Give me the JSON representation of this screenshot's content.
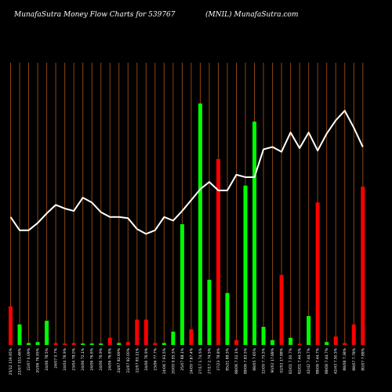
{
  "header": {
    "left": "MunafaSutra  Money Flow  Charts for 539767",
    "right": "(MNIL) MunafaSutra.com"
  },
  "colors": {
    "background": "#000000",
    "grid": "#8B4513",
    "up": "#00ff00",
    "down": "#ff0000",
    "line": "#ffffff"
  },
  "chart_data": {
    "type": "bar",
    "title": "",
    "xlabel": "",
    "ylabel": "",
    "grid": true,
    "ylim": [
      0,
      100
    ],
    "categories": [
      "Fri 25 Jul 2025",
      "Thu 24 Jul 2025",
      "Wed 23 Jul 2025",
      "Tue 22 Jul 2025",
      "Mon 21 Jul 2025",
      "Fri 18 Jul 2025",
      "Thu 17 Jul 2025",
      "Wed 16 Jul 2025",
      "Tue 15 Jul 2025",
      "Mon 14 Jul 2025",
      "Fri 11 Jul 2025",
      "Thu 10 Jul 2025",
      "Wed 09 Jul 2025",
      "Tue 08 Jul 2025",
      "Mon 07 Jul 2025",
      "Fri 04 Jul 2025",
      "Thu 03 Jul 2025",
      "Wed 02 Jul 2025",
      "Tue 01 Jul 2025",
      "Mon 30 Jun 2025",
      "Fri 27 Jun 2025",
      "Thu 26 Jun 2025",
      "Wed 25 Jun 2025",
      "Tue 24 Jun 2025",
      "Mon 23 Jun 2025",
      "Fri 20 Jun 2025",
      "Thu 19 Jun 2025",
      "Wed 18 Jun 2025",
      "Tue 17 Jun 2025",
      "Mon 16 Jun 2025",
      "Fri 13 Jun 2025",
      "Thu 12 Jun 2025",
      "Wed 11 Jun 2025",
      "Tue 10 Jun 2025",
      "Mon 09 Jun 2025",
      "Fri 06 Jun 2025",
      "Thu 05 Jun 2025",
      "Wed 04 Jun 2025",
      "Tue 03 Jun 2025",
      "Mon 02 Jun 2025"
    ],
    "tick_labels": [
      "25/12 139.95%",
      "22/07 151.46%",
      "22/07 0.09%",
      "20/06 76.95%",
      "24/06 78.5%",
      "24/07 0.7%",
      "24/04 76.9%",
      "23/04 78.0%",
      "24/06 72.1%",
      "24/06 76.6%",
      "24/06 76.9%",
      "24/06 76.8%",
      "24/07 82.69%",
      "22/07 82.00%",
      "22/07 83.11%",
      "24/06 76.9%",
      "23/06 77.7%",
      "24/06 7.93.5%",
      "20/09 9.95.5%",
      "25/07 68.1%",
      "24/09 7.67.4%",
      "27/17 1.74.5%",
      "27/17 2.74.5%",
      "27/23 78.8%",
      "85/21 88.5%",
      "88/06 7.02.1%",
      "88/06 7.83.5%",
      "88/05 7.65%",
      "12/09 7.75.5%",
      "90/02 17.88%",
      "02/02 17.88%",
      "82/01 7.50.7%",
      "82/01 7.44.5%",
      "42/42 7.44.7%",
      "88/06 7.44.7%",
      "88/08 7.44.7%",
      "42/43 7.50.5%",
      "88/08 7.38%",
      "88/07 7.78%",
      "80/07 7.88%"
    ],
    "series": [
      {
        "values": [
          16,
          8.5,
          0.8,
          1.2,
          10,
          0.8,
          0.6,
          0.8,
          0.6,
          0.6,
          0.6,
          3,
          0.8,
          1.2,
          10.5,
          10.5,
          0.8,
          0.8,
          5.5,
          50,
          6.5,
          100,
          27,
          77,
          21.5,
          2,
          66,
          92.5,
          7.5,
          2,
          29,
          3,
          0.5,
          12,
          59,
          1.2,
          3.5,
          0.8,
          8.5,
          65.5
        ],
        "direction": [
          "down",
          "up",
          "up",
          "up",
          "up",
          "down",
          "down",
          "down",
          "up",
          "up",
          "up",
          "down",
          "up",
          "down",
          "down",
          "down",
          "down",
          "up",
          "up",
          "up",
          "down",
          "up",
          "up",
          "down",
          "up",
          "down",
          "up",
          "up",
          "up",
          "up",
          "down",
          "up",
          "down",
          "up",
          "down",
          "up",
          "down",
          "down",
          "down",
          "down"
        ]
      },
      {
        "type": "line",
        "values": [
          53,
          47.5,
          47.5,
          50.5,
          54.5,
          58,
          56.5,
          55.5,
          61,
          59,
          55,
          53,
          53,
          52.5,
          48,
          46,
          47.5,
          53,
          51.5,
          55.5,
          60,
          64.5,
          67.5,
          64,
          64,
          70.5,
          69.5,
          69.5,
          81,
          82,
          80,
          88,
          81.5,
          88,
          80.5,
          87.5,
          93,
          97,
          90,
          82
        ]
      }
    ]
  }
}
